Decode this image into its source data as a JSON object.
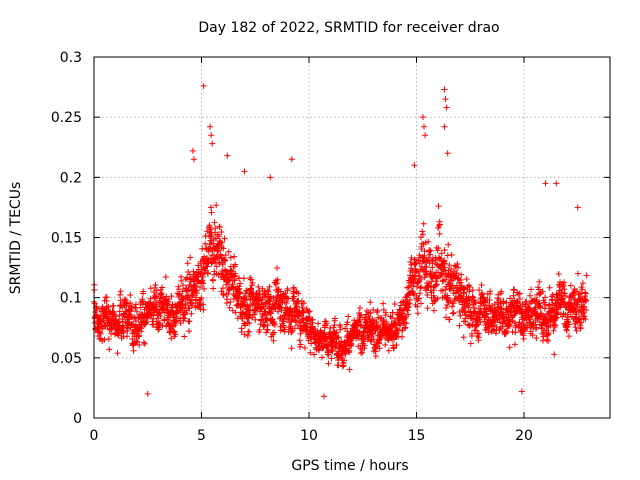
{
  "chart_data": {
    "type": "scatter",
    "title": "Day 182 of 2022, SRMTID for receiver drao",
    "xlabel": "GPS time / hours",
    "ylabel": "SRMTID / TECUs",
    "xlim": [
      0,
      24
    ],
    "ylim": [
      0,
      0.3
    ],
    "xticks": [
      0,
      5,
      10,
      15,
      20
    ],
    "xtick_labels": [
      "0",
      "5",
      "10",
      "15",
      "20"
    ],
    "yticks": [
      0,
      0.05,
      0.1,
      0.15,
      0.2,
      0.25,
      0.3
    ],
    "ytick_labels": [
      "0",
      "0.05",
      "0.1",
      "0.15",
      "0.2",
      "0.25",
      "0.3"
    ],
    "grid": true,
    "marker": "+",
    "color": "#ff0000",
    "series": [
      {
        "name": "SRMTID",
        "x_range": [
          0,
          22.9
        ],
        "approx_points": 2800,
        "profile": [
          {
            "x": 0.0,
            "center": 0.085,
            "spread": 0.035
          },
          {
            "x": 1.0,
            "center": 0.08,
            "spread": 0.03
          },
          {
            "x": 2.0,
            "center": 0.085,
            "spread": 0.03
          },
          {
            "x": 3.0,
            "center": 0.085,
            "spread": 0.03
          },
          {
            "x": 4.0,
            "center": 0.09,
            "spread": 0.035
          },
          {
            "x": 5.0,
            "center": 0.12,
            "spread": 0.055
          },
          {
            "x": 5.5,
            "center": 0.15,
            "spread": 0.05
          },
          {
            "x": 6.0,
            "center": 0.13,
            "spread": 0.05
          },
          {
            "x": 7.0,
            "center": 0.095,
            "spread": 0.035
          },
          {
            "x": 8.0,
            "center": 0.09,
            "spread": 0.035
          },
          {
            "x": 9.0,
            "center": 0.095,
            "spread": 0.04
          },
          {
            "x": 10.0,
            "center": 0.075,
            "spread": 0.03
          },
          {
            "x": 11.0,
            "center": 0.065,
            "spread": 0.025
          },
          {
            "x": 12.0,
            "center": 0.065,
            "spread": 0.025
          },
          {
            "x": 13.0,
            "center": 0.075,
            "spread": 0.03
          },
          {
            "x": 14.0,
            "center": 0.07,
            "spread": 0.03
          },
          {
            "x": 15.0,
            "center": 0.12,
            "spread": 0.05
          },
          {
            "x": 16.0,
            "center": 0.13,
            "spread": 0.055
          },
          {
            "x": 17.0,
            "center": 0.1,
            "spread": 0.04
          },
          {
            "x": 18.0,
            "center": 0.09,
            "spread": 0.03
          },
          {
            "x": 19.0,
            "center": 0.085,
            "spread": 0.03
          },
          {
            "x": 20.0,
            "center": 0.09,
            "spread": 0.035
          },
          {
            "x": 21.0,
            "center": 0.09,
            "spread": 0.035
          },
          {
            "x": 22.0,
            "center": 0.09,
            "spread": 0.035
          },
          {
            "x": 22.9,
            "center": 0.1,
            "spread": 0.035
          }
        ],
        "outliers": [
          {
            "x": 5.1,
            "y": 0.276
          },
          {
            "x": 4.6,
            "y": 0.222
          },
          {
            "x": 4.65,
            "y": 0.215
          },
          {
            "x": 5.4,
            "y": 0.242
          },
          {
            "x": 5.45,
            "y": 0.235
          },
          {
            "x": 5.5,
            "y": 0.228
          },
          {
            "x": 6.2,
            "y": 0.218
          },
          {
            "x": 7.0,
            "y": 0.205
          },
          {
            "x": 8.2,
            "y": 0.2
          },
          {
            "x": 9.2,
            "y": 0.215
          },
          {
            "x": 15.3,
            "y": 0.25
          },
          {
            "x": 15.35,
            "y": 0.242
          },
          {
            "x": 15.4,
            "y": 0.235
          },
          {
            "x": 16.3,
            "y": 0.273
          },
          {
            "x": 16.35,
            "y": 0.265
          },
          {
            "x": 16.4,
            "y": 0.258
          },
          {
            "x": 16.3,
            "y": 0.242
          },
          {
            "x": 16.45,
            "y": 0.22
          },
          {
            "x": 14.9,
            "y": 0.21
          },
          {
            "x": 21.0,
            "y": 0.195
          },
          {
            "x": 21.5,
            "y": 0.195
          },
          {
            "x": 22.5,
            "y": 0.175
          },
          {
            "x": 2.5,
            "y": 0.02
          },
          {
            "x": 10.7,
            "y": 0.018
          },
          {
            "x": 19.9,
            "y": 0.022
          }
        ]
      }
    ]
  }
}
